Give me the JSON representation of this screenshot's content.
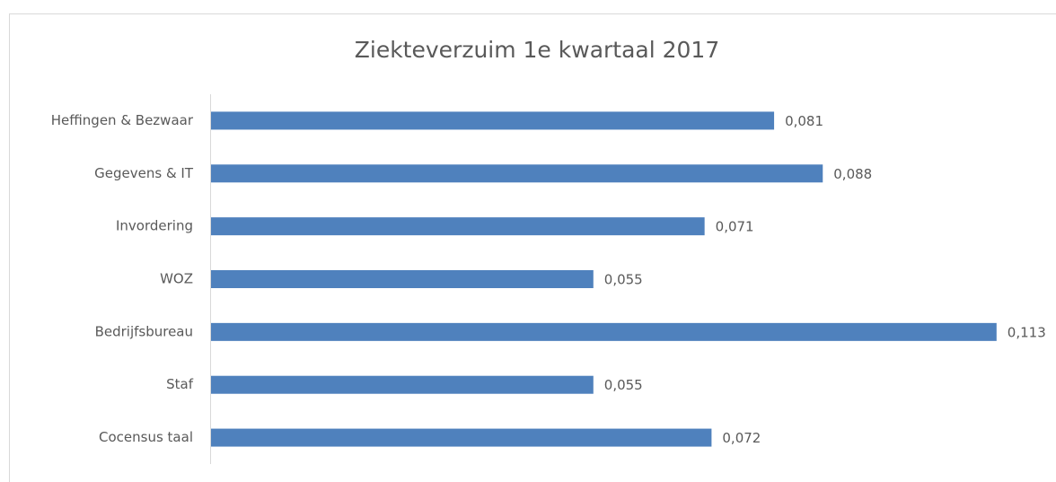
{
  "chart_data": {
    "type": "bar",
    "orientation": "horizontal",
    "title": "Ziekteverzuim 1e kwartaal 2017",
    "categories": [
      "Heffingen & Bezwaar",
      "Gegevens & IT",
      "Invordering",
      "WOZ",
      "Bedrijfsbureau",
      "Staf",
      "Cocensus taal"
    ],
    "values": [
      0.081,
      0.088,
      0.071,
      0.055,
      0.113,
      0.055,
      0.072
    ],
    "value_labels": [
      "0,081",
      "0,088",
      "0,071",
      "0,055",
      "0,113",
      "0,055",
      "0,072"
    ],
    "color": "#4f81bd",
    "xlim": [
      0,
      0.12
    ]
  }
}
